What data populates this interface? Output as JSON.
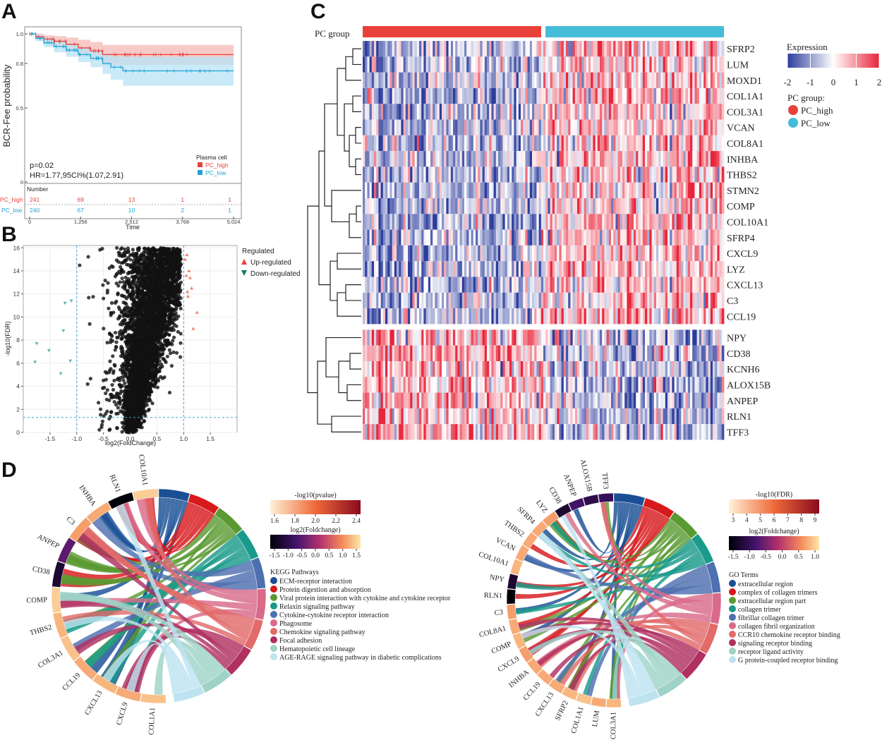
{
  "panel_labels": {
    "a": "A",
    "b": "B",
    "c": "C",
    "d": "D"
  },
  "colors": {
    "pc_high": "#e8413a",
    "pc_low": "#1fa3d6",
    "pc_high_light": "#f4b8b5",
    "pc_low_light": "#b7e3f5",
    "heat_low": "#2c3c9c",
    "heat_mid": "#ffffff",
    "heat_high": "#e8253a",
    "up": "#f0806e",
    "down": "#5bbab0"
  },
  "chart_data": [
    {
      "id": "A",
      "type": "line",
      "kind": "kaplan-meier",
      "ylabel": "BCR-Fee probability",
      "xlabel": "Time",
      "ylim": [
        0,
        1.0
      ],
      "yticks": [
        "0",
        "0.5",
        "0.8",
        "1.0"
      ],
      "ytick_values": [
        0,
        0.5,
        0.8,
        1.0
      ],
      "xlim": [
        0,
        5024
      ],
      "xticks": [
        "0",
        "1,256",
        "2,512",
        "3,768",
        "5,024"
      ],
      "xtick_values": [
        0,
        1256,
        2512,
        3768,
        5024
      ],
      "p_text": "p=0.02",
      "hr_text": "HR=1.77,95CI%(1.07,2.91)",
      "legend_title": "Plasma cell",
      "number_title": "Number",
      "series": [
        {
          "name": "PC_high",
          "x": [
            0,
            150,
            350,
            600,
            900,
            1200,
            1500,
            1800,
            2300,
            5024
          ],
          "y": [
            1.0,
            0.98,
            0.965,
            0.95,
            0.93,
            0.905,
            0.885,
            0.86,
            0.86,
            0.86
          ],
          "ci_low": [
            1.0,
            0.96,
            0.935,
            0.91,
            0.88,
            0.85,
            0.82,
            0.79,
            0.79,
            0.79
          ],
          "ci_high": [
            1.0,
            1.0,
            0.99,
            0.985,
            0.975,
            0.96,
            0.945,
            0.925,
            0.925,
            0.925
          ],
          "at_risk": [
            "241",
            "69",
            "13",
            "1",
            "1"
          ]
        },
        {
          "name": "PC_low",
          "x": [
            0,
            150,
            350,
            600,
            900,
            1200,
            1500,
            1800,
            2000,
            2300,
            5024
          ],
          "y": [
            1.0,
            0.97,
            0.94,
            0.915,
            0.89,
            0.86,
            0.835,
            0.8,
            0.775,
            0.75,
            0.75
          ],
          "ci_low": [
            1.0,
            0.95,
            0.91,
            0.875,
            0.845,
            0.81,
            0.775,
            0.73,
            0.69,
            0.65,
            0.65
          ],
          "ci_high": [
            1.0,
            0.99,
            0.97,
            0.955,
            0.935,
            0.91,
            0.89,
            0.865,
            0.85,
            0.845,
            0.845
          ],
          "at_risk": [
            "240",
            "67",
            "10",
            "2",
            "1"
          ]
        }
      ]
    },
    {
      "id": "B",
      "type": "scatter",
      "kind": "volcano",
      "xlabel": "log2(FoldChange)",
      "ylabel": "-log10(FDR)",
      "xlim": [
        -2,
        2
      ],
      "ylim": [
        0,
        16.2
      ],
      "xticks": [
        "-1.5",
        "-1.0",
        "-0.5",
        "0.0",
        "0.5",
        "1.0",
        "1.5"
      ],
      "xtick_values": [
        -1.5,
        -1.0,
        -0.5,
        0.0,
        0.5,
        1.0,
        1.5
      ],
      "yticks": [
        "0",
        "2",
        "4",
        "6",
        "8",
        "10",
        "12",
        "14",
        "16"
      ],
      "ytick_values": [
        0,
        2,
        4,
        6,
        8,
        10,
        12,
        14,
        16
      ],
      "fc_cutoffs": [
        -1.0,
        1.0
      ],
      "fdr_cutoff": 1.3,
      "legend_title": "Regulated",
      "legend_items": [
        "Up-regulated",
        "Down-regulated"
      ],
      "up_points": [
        [
          1.03,
          15.0
        ],
        [
          1.05,
          13.6
        ],
        [
          1.07,
          12.2
        ],
        [
          1.1,
          14.0
        ],
        [
          1.12,
          13.4
        ],
        [
          1.15,
          12.5
        ],
        [
          1.18,
          9.0
        ],
        [
          1.25,
          10.4
        ],
        [
          1.08,
          11.8
        ],
        [
          1.06,
          15.4
        ]
      ],
      "down_points": [
        [
          -1.75,
          7.7
        ],
        [
          -1.78,
          6.1
        ],
        [
          -1.52,
          7.1
        ],
        [
          -1.3,
          5.1
        ],
        [
          -1.22,
          11.2
        ],
        [
          -1.25,
          8.8
        ],
        [
          -1.12,
          6.2
        ],
        [
          -1.1,
          11.4
        ]
      ],
      "bulk_n": 4500
    },
    {
      "id": "C",
      "type": "heatmap",
      "group_label": "PC group",
      "legend_title": "Expression",
      "scale_ticks": [
        "-2",
        "-1",
        "0",
        "1",
        "2"
      ],
      "scale_tick_values": [
        -2,
        -1,
        0,
        1,
        2
      ],
      "group_legend_title": "PC group:",
      "groups": [
        "PC_high",
        "PC_low"
      ],
      "n_columns": 160,
      "genes": [
        "SFRP2",
        "LUM",
        "MOXD1",
        "COL1A1",
        "COL3A1",
        "VCAN",
        "COL8A1",
        "INHBA",
        "THBS2",
        "STMN2",
        "COMP",
        "COL10A1",
        "SFRP4",
        "CXCL9",
        "LYZ",
        "CXCL13",
        "C3",
        "CCL19",
        "NPY",
        "CD38",
        "KCNH6",
        "ALOX15B",
        "ANPEP",
        "RLN1",
        "TFF3"
      ],
      "gene_direction": [
        1,
        1,
        1,
        1,
        1,
        1,
        1,
        1,
        1,
        1,
        1,
        1,
        1,
        1,
        1,
        1,
        1,
        1,
        -1,
        -1,
        -1,
        -1,
        -1,
        -1,
        -1
      ]
    },
    {
      "id": "D1",
      "type": "chord",
      "category": "KEGG Pathways",
      "genes": [
        "COL1A1",
        "CXCL9",
        "CXCL13",
        "CCL19",
        "COL3A1",
        "THBS2",
        "COMP",
        "CD38",
        "ANPEP",
        "C3",
        "INHBA",
        "RLN1",
        "COL10A1"
      ],
      "gene_fc": [
        1.2,
        1.0,
        1.1,
        1.0,
        1.2,
        1.1,
        1.3,
        -1.2,
        -0.6,
        0.9,
        1.0,
        -1.5,
        1.3
      ],
      "pathway_scale_title": "-log10(pvalue)",
      "pathway_scale_ticks": [
        "1.6",
        "1.8",
        "2.0",
        "2.2",
        "2.4"
      ],
      "pathway_scale_values": [
        1.6,
        1.8,
        2.0,
        2.2,
        2.4
      ],
      "fc_scale_title": "log2(Foldchange)",
      "fc_scale_ticks": [
        "-1.5",
        "-1.0",
        "-0.5",
        "0.0",
        "0.5",
        "1.0",
        "1.5"
      ],
      "fc_scale_values": [
        -1.5,
        -1.0,
        -0.5,
        0.0,
        0.5,
        1.0,
        1.5
      ],
      "terms": [
        {
          "name": "ECM-receptor interaction",
          "color": "#1a4f95",
          "value": 2.4
        },
        {
          "name": "Protein digestion and absorption",
          "color": "#d7191c",
          "value": 2.3
        },
        {
          "name": "Viral protein interaction with cytokine and cytokine receptor",
          "color": "#5a9a32",
          "value": 2.2
        },
        {
          "name": "Relaxin signaling pathway",
          "color": "#1a9a8a",
          "value": 2.1
        },
        {
          "name": "Cytokine-cytokine receptor interaction",
          "color": "#4e6fb0",
          "value": 2.0
        },
        {
          "name": "Phagosome",
          "color": "#d96a8a",
          "value": 1.9
        },
        {
          "name": "Chemokine signaling pathway",
          "color": "#e26a6a",
          "value": 1.8
        },
        {
          "name": "Focal adhesion",
          "color": "#b03060",
          "value": 1.75
        },
        {
          "name": "Hematopoietic cell lineage",
          "color": "#9fd3c7",
          "value": 1.7
        },
        {
          "name": "AGE-RAGE signaling pathway in diabetic complications",
          "color": "#bde3f0",
          "value": 1.6
        }
      ]
    },
    {
      "id": "D2",
      "type": "chord",
      "category": "GO Terms",
      "genes": [
        "COL3A1",
        "LUM",
        "COL1A1",
        "SFRP2",
        "CXCL13",
        "CCL19",
        "INHBA",
        "CXCL9",
        "COMP",
        "COL8A1",
        "C3",
        "RLN1",
        "NPY",
        "COL10A1",
        "VCAN",
        "THBS2",
        "SFRP4",
        "LYZ",
        "CD38",
        "ANPEP",
        "ALOX15B",
        "TFF3"
      ],
      "gene_fc": [
        1.1,
        1.0,
        1.2,
        1.1,
        1.0,
        1.0,
        1.0,
        0.9,
        1.1,
        1.0,
        0.9,
        -1.5,
        -1.2,
        1.1,
        1.0,
        1.0,
        1.0,
        0.9,
        -1.2,
        -0.8,
        -1.0,
        -0.9
      ],
      "pathway_scale_title": "-log10(FDR)",
      "pathway_scale_ticks": [
        "3",
        "4",
        "5",
        "6",
        "7",
        "8",
        "9"
      ],
      "pathway_scale_values": [
        3,
        4,
        5,
        6,
        7,
        8,
        9
      ],
      "fc_scale_title": "log2(Foldchange)",
      "fc_scale_ticks": [
        "-1.5",
        "-1.0",
        "-0.5",
        "0.0",
        "0.5",
        "1.0"
      ],
      "fc_scale_values": [
        -1.5,
        -1.0,
        -0.5,
        0.0,
        0.5,
        1.0
      ],
      "terms": [
        {
          "name": "extracellular region",
          "color": "#1a4f95",
          "value": 9
        },
        {
          "name": "complex of collagen trimers",
          "color": "#d7191c",
          "value": 8
        },
        {
          "name": "extracellular region part",
          "color": "#5a9a32",
          "value": 7.5
        },
        {
          "name": "collagen trimer",
          "color": "#1a9a8a",
          "value": 7
        },
        {
          "name": "fibrillar collagen trimer",
          "color": "#4e6fb0",
          "value": 6
        },
        {
          "name": "collagen fibril organization",
          "color": "#d96a8a",
          "value": 5.5
        },
        {
          "name": "CCR10 chemokine receptor binding",
          "color": "#e26a6a",
          "value": 5
        },
        {
          "name": "signaling receptor binding",
          "color": "#b03060",
          "value": 4
        },
        {
          "name": "receptor ligand activity",
          "color": "#9fd3c7",
          "value": 3.5
        },
        {
          "name": "G protein-coupled receptor binding",
          "color": "#bde3f0",
          "value": 3
        }
      ]
    }
  ]
}
